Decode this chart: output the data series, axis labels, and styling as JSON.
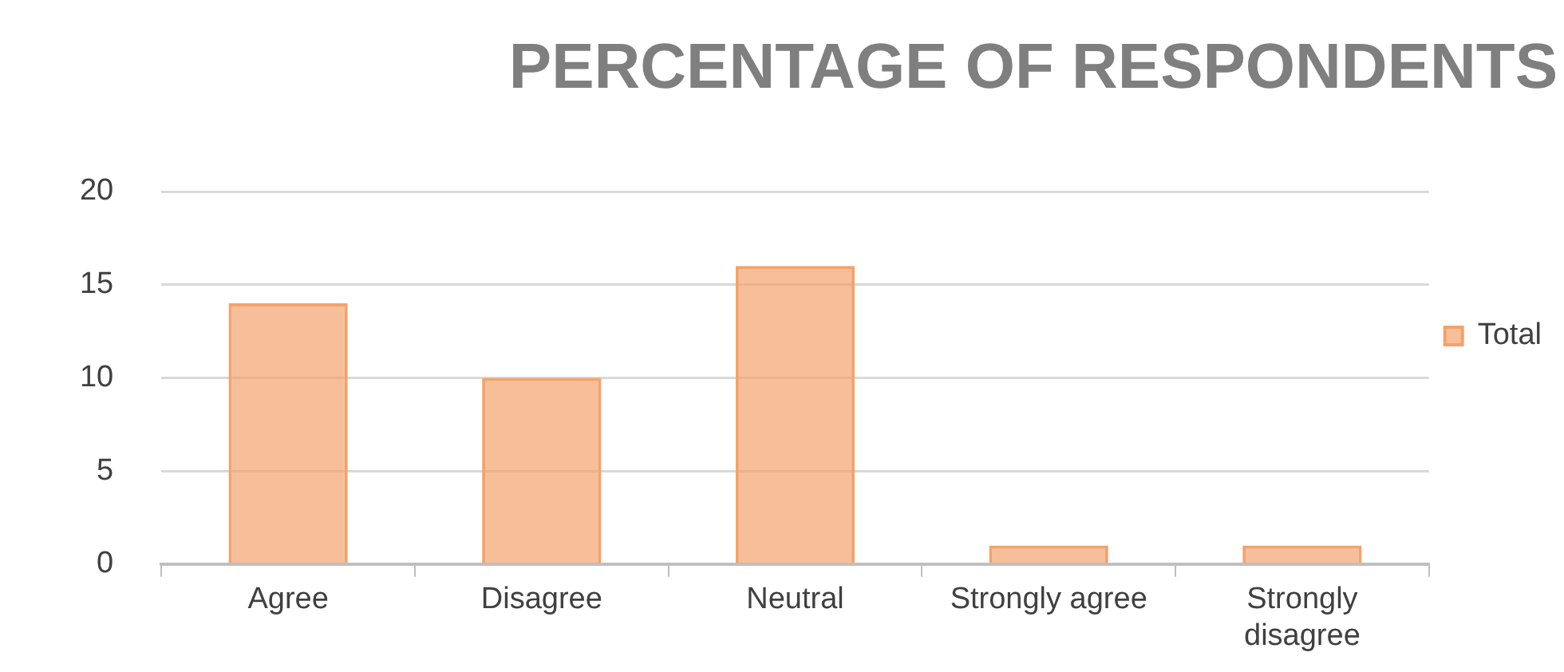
{
  "chart_data": {
    "type": "bar",
    "title": "PERCENTAGE OF RESPONDENTS",
    "categories": [
      "Agree",
      "Disagree",
      "Neutral",
      "Strongly agree",
      "Strongly disagree"
    ],
    "series": [
      {
        "name": "Total",
        "color": "#f4a26b",
        "values": [
          14,
          10,
          16,
          1,
          1
        ]
      }
    ],
    "ylim": [
      0,
      20
    ],
    "yticks": [
      0,
      5,
      10,
      15,
      20
    ],
    "grid": "y",
    "legend": "right"
  }
}
